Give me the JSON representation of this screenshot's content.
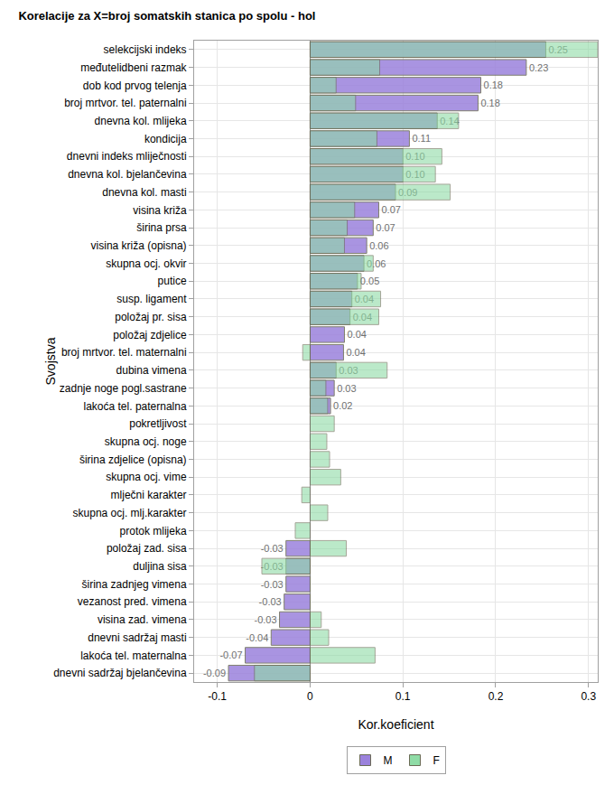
{
  "chart_data": {
    "type": "bar",
    "orientation": "horizontal",
    "title": "Korelacije za X=broj somatskih stanica po spolu - hol",
    "x_label": "Kor.koeficient",
    "y_label": "Svojstva",
    "categories": [
      "selekcijski indeks",
      "međutelidbeni razmak",
      "dob kod prvog telenja",
      "broj mrtvor. tel. paternalni",
      "dnevna kol. mlijeka",
      "kondicija",
      "dnevni indeks mliječnosti",
      "dnevna kol. bjelančevina",
      "dnevna kol. masti",
      "visina križa",
      "širina prsa",
      "visina križa (opisna)",
      "skupna ocj. okvir",
      "putice",
      "susp. ligament",
      "položaj pr. sisa",
      "položaj zdjelice",
      "broj mrtvor. tel. maternalni",
      "dubina vimena",
      "zadnje noge pogl.sastrane",
      "lakoća tel. paternalna",
      "pokretljivost",
      "skupna ocj. noge",
      "širina zdjelice (opisna)",
      "skupna ocj. vime",
      "mlječni karakter",
      "skupna ocj. mlj.karakter",
      "protok mlijeka",
      "položaj zad. sisa",
      "duljina sisa",
      "širina zadnjeg vimena",
      "vezanost pred. vimena",
      "visina zad. vimena",
      "dnevni sadržaj masti",
      "lakoća tel. maternalna",
      "dnevni sadržaj bjelančevina"
    ],
    "series": [
      {
        "name": "M",
        "color": "#9b82dc",
        "values": [
          0.254,
          0.233,
          0.184,
          0.181,
          0.137,
          0.107,
          0.1,
          0.1,
          0.092,
          0.074,
          0.068,
          0.061,
          0.058,
          0.051,
          0.045,
          0.043,
          0.037,
          0.036,
          0.028,
          0.026,
          0.022,
          null,
          null,
          null,
          null,
          null,
          null,
          null,
          -0.026,
          -0.026,
          -0.026,
          -0.028,
          -0.033,
          -0.042,
          -0.07,
          -0.088
        ],
        "value_labels": [
          "0.25",
          "0.23",
          "0.18",
          "0.18",
          "0.14",
          "0.11",
          "0.10",
          "0.10",
          "0.09",
          "0.07",
          "0.07",
          "0.06",
          "0.06",
          "0.05",
          "0.04",
          "0.04",
          "0.04",
          "0.04",
          "0.03",
          "0.03",
          "0.02",
          null,
          null,
          null,
          null,
          null,
          null,
          null,
          "-0.03",
          "-0.03",
          "-0.03",
          "-0.03",
          "-0.03",
          "-0.04",
          "-0.07",
          "-0.09"
        ]
      },
      {
        "name": "F",
        "color": "#8fdca6",
        "values": [
          0.31,
          0.075,
          0.028,
          0.049,
          0.16,
          0.072,
          0.142,
          0.135,
          0.151,
          0.048,
          0.04,
          0.037,
          0.068,
          0.055,
          0.076,
          0.074,
          null,
          -0.008,
          0.083,
          0.017,
          0.019,
          0.026,
          0.018,
          0.021,
          0.033,
          -0.009,
          0.019,
          -0.016,
          0.039,
          -0.052,
          null,
          null,
          0.012,
          0.02,
          0.07,
          -0.06
        ]
      }
    ],
    "xlim": [
      -0.125,
      0.31
    ],
    "xticks": [
      -0.1,
      0,
      0.1,
      0.2,
      0.3
    ],
    "grid": true,
    "legend": "bottom",
    "data_labels": true
  }
}
